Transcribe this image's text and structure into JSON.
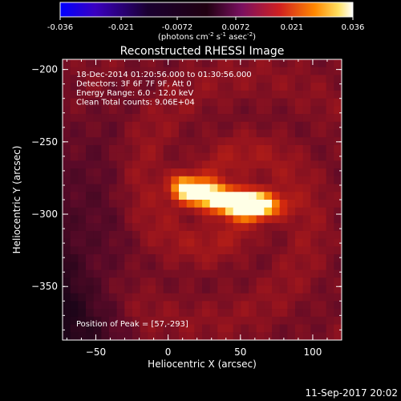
{
  "chart_data": {
    "type": "heatmap",
    "title": "Reconstructed RHESSI Image",
    "xlabel": "Heliocentric X (arcsec)",
    "ylabel": "Heliocentric Y (arcsec)",
    "xlim": [
      -73,
      120
    ],
    "ylim": [
      -387,
      -193
    ],
    "x_ticks": [
      -50,
      0,
      50,
      100
    ],
    "y_ticks": [
      -200,
      -250,
      -300,
      -350
    ],
    "colorbar": {
      "range": [
        -0.036,
        0.036
      ],
      "ticks": [
        "-0.036",
        "-0.021",
        "-0.0072",
        "0.0072",
        "0.021",
        "0.036"
      ],
      "units": "(photons cm",
      "units_exp1": "-2",
      "units_mid": " s",
      "units_exp2": "-1",
      "units_mid2": " asec",
      "units_exp3": "-2",
      "units_end": ")",
      "colormap": [
        "#0000ff",
        "#000000",
        "#ff4000",
        "#ffffff"
      ]
    },
    "info_lines": [
      "18-Dec-2014 01:20:56.000 to 01:30:56.000",
      "Detectors: 3F 6F 7F 9F, Att 0",
      "Energy Range: 6.0 - 12.0 keV",
      "Clean    Total counts: 9.06E+04"
    ],
    "peak_label": "Position of Peak = [57,-293]",
    "peak": [
      57,
      -293
    ],
    "sources": [
      {
        "x": 60,
        "y": -294,
        "amp": 1.0,
        "sx": 12,
        "sy": 6
      },
      {
        "x": 42,
        "y": -291,
        "amp": 0.7,
        "sx": 12,
        "sy": 6
      },
      {
        "x": 22,
        "y": -285,
        "amp": 0.72,
        "sx": 10,
        "sy": 6
      },
      {
        "x": 10,
        "y": -281,
        "amp": 0.55,
        "sx": 6,
        "sy": 6
      }
    ]
  },
  "footer": {
    "date": "11-Sep-2017 20:02"
  }
}
